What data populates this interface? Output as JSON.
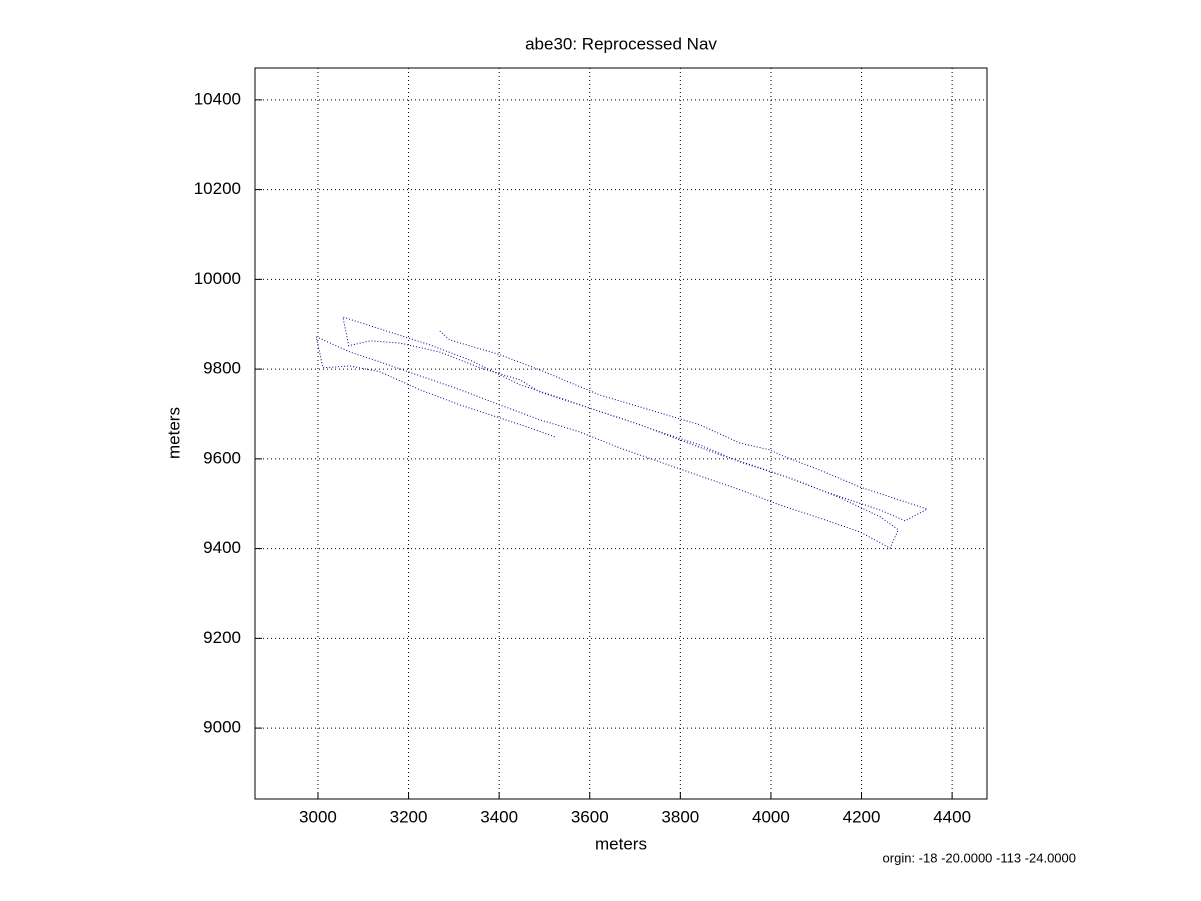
{
  "chart_data": {
    "type": "line",
    "title": "abe30: Reprocessed Nav",
    "x_label": "meters",
    "y_label": "meters",
    "annotation": "orgin: -18 -20.0000 -113 -24.0000",
    "xlim": [
      2861,
      4477
    ],
    "ylim": [
      8842,
      10471
    ],
    "xticks": [
      3000,
      3200,
      3400,
      3600,
      3800,
      4000,
      4200,
      4400
    ],
    "yticks": [
      9000,
      9200,
      9400,
      9600,
      9800,
      10000,
      10200,
      10400
    ],
    "grid": true,
    "x": [
      3269,
      3291,
      3402,
      3490,
      3623,
      3843,
      3932,
      3998,
      4020,
      4108,
      4197,
      4285,
      4345,
      4296,
      4241,
      4108,
      4042,
      3932,
      3843,
      3755,
      3667,
      3578,
      3490,
      3446,
      3358,
      3269,
      3181,
      3115,
      3068,
      3055,
      3247,
      3336,
      3446,
      3534,
      3623,
      3711,
      3799,
      3888,
      3976,
      4064,
      4153,
      4241,
      4281,
      4263,
      4197,
      4108,
      4020,
      3932,
      3843,
      3755,
      3667,
      3578,
      3490,
      3402,
      3314,
      3225,
      3137,
      3071,
      2996,
      3011,
      3071,
      3137,
      3225,
      3314,
      3402,
      3468,
      3523
    ],
    "series": [
      {
        "color": "#00008b",
        "values": [
          9885,
          9865,
          9832,
          9798,
          9742,
          9676,
          9635,
          9620,
          9609,
          9575,
          9537,
          9508,
          9488,
          9462,
          9486,
          9531,
          9557,
          9593,
          9631,
          9660,
          9691,
          9720,
          9749,
          9776,
          9803,
          9838,
          9858,
          9863,
          9852,
          9916,
          9854,
          9820,
          9765,
          9736,
          9705,
          9676,
          9642,
          9609,
          9580,
          9549,
          9513,
          9471,
          9442,
          9401,
          9437,
          9468,
          9497,
          9531,
          9562,
          9593,
          9624,
          9660,
          9687,
          9720,
          9754,
          9785,
          9816,
          9838,
          9872,
          9803,
          9807,
          9794,
          9754,
          9720,
          9691,
          9669,
          9649
        ]
      }
    ]
  }
}
